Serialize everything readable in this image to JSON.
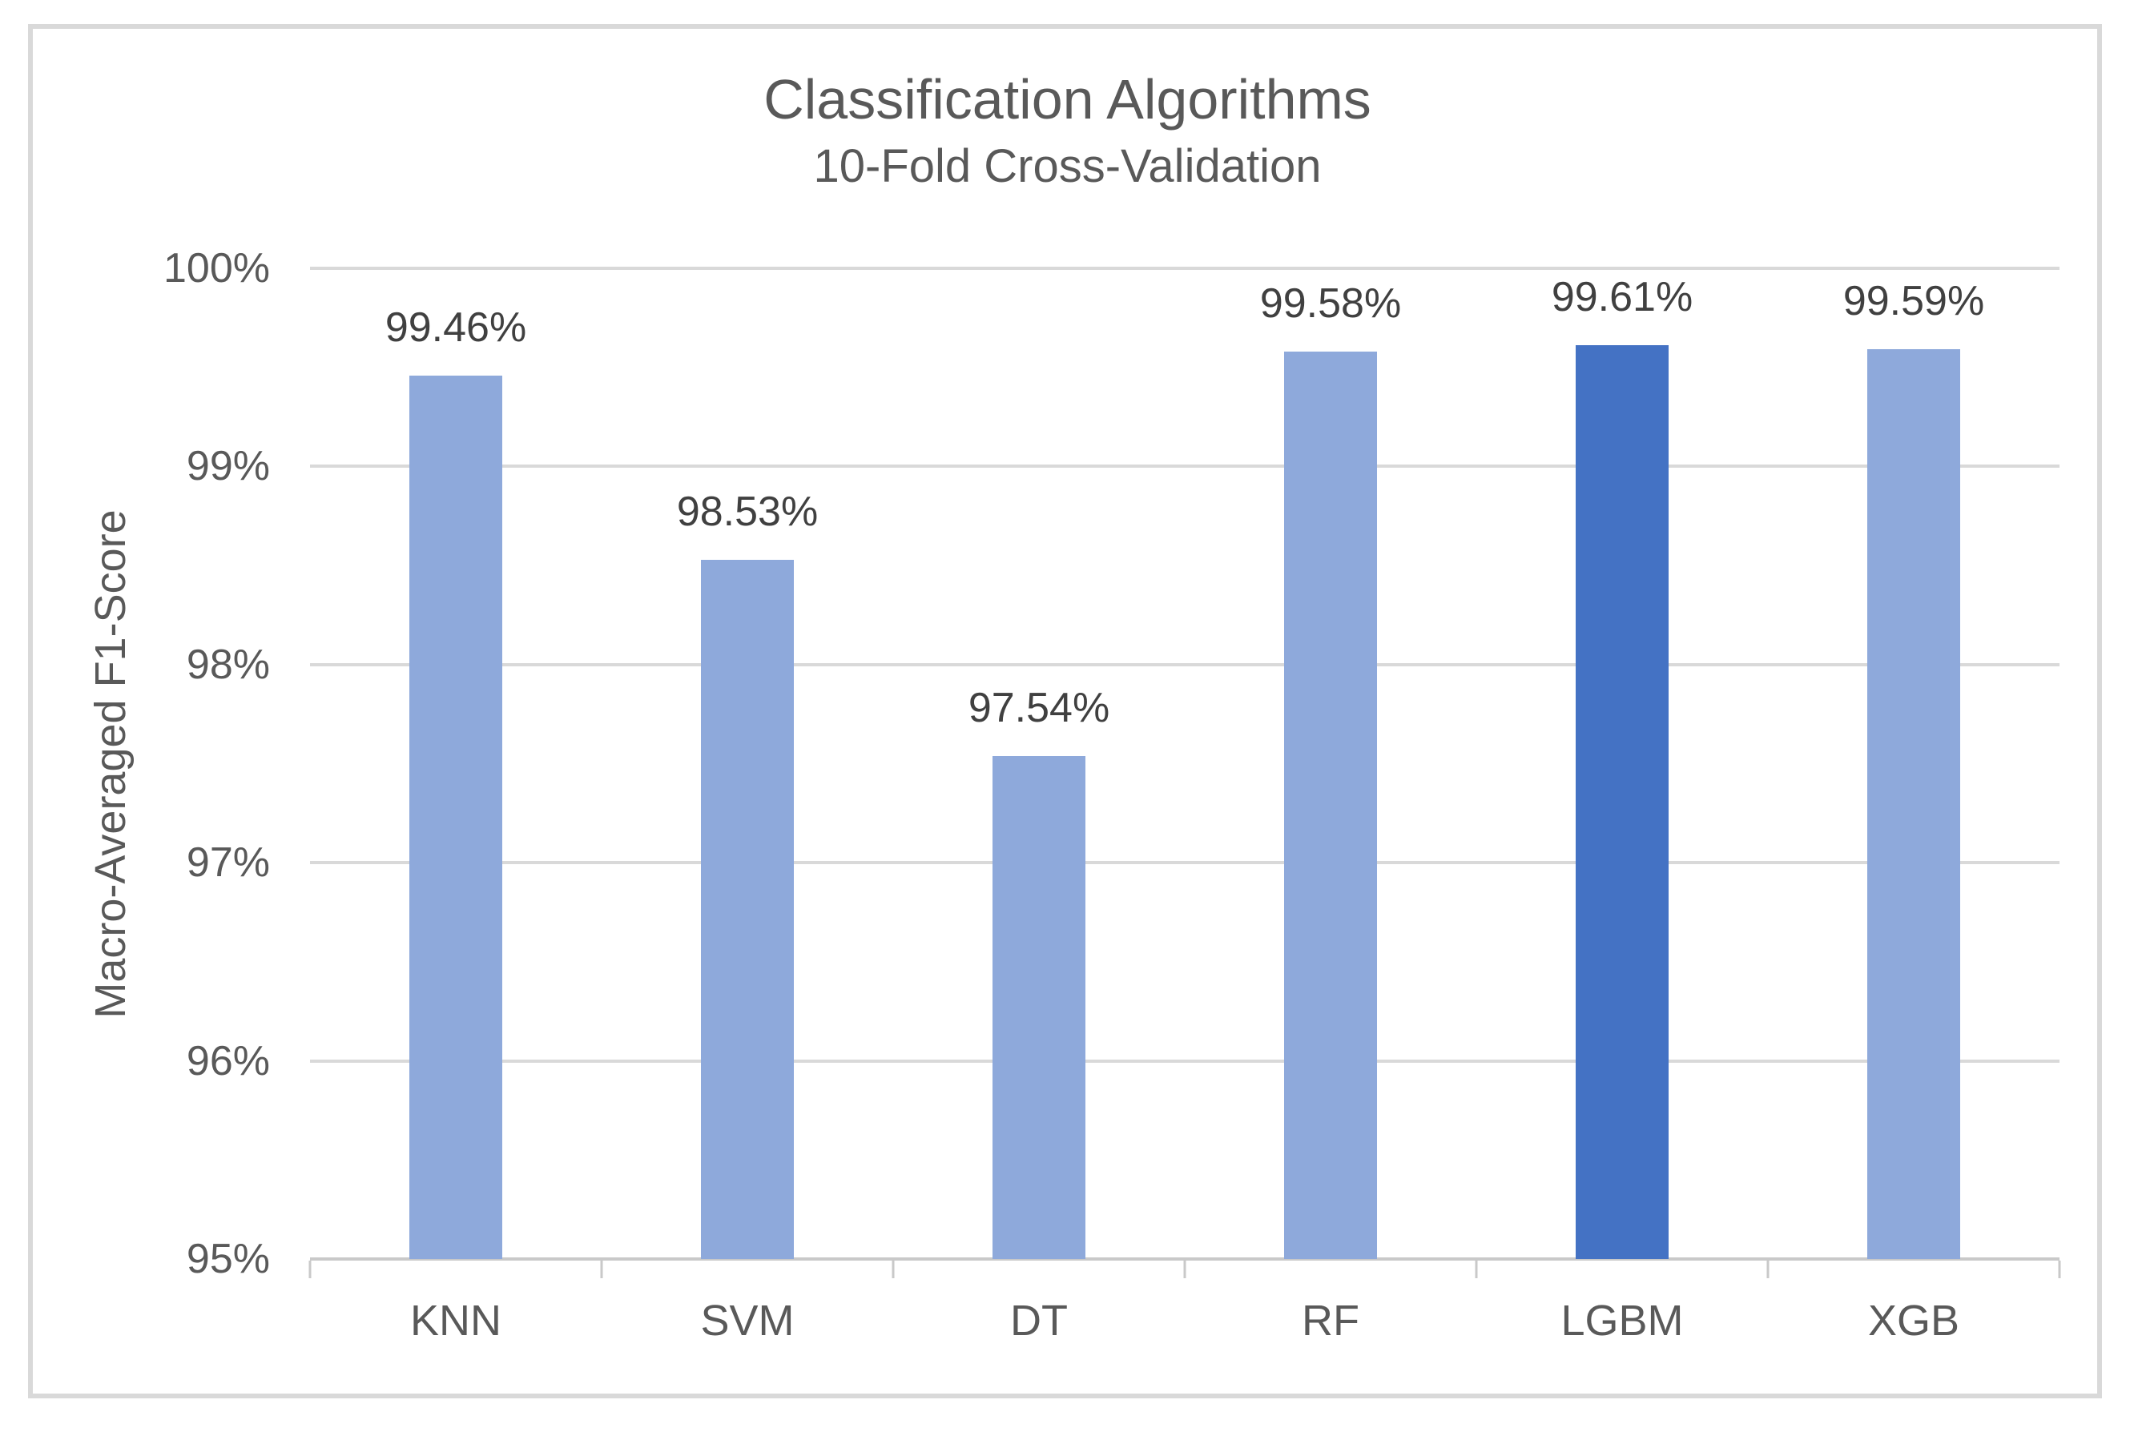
{
  "chart_data": {
    "type": "bar",
    "title": "Classification Algorithms",
    "subtitle": "10-Fold Cross-Validation",
    "ylabel": "Macro-Averaged F1-Score",
    "xlabel": "",
    "categories": [
      "KNN",
      "SVM",
      "DT",
      "RF",
      "LGBM",
      "XGB"
    ],
    "values": [
      99.46,
      98.53,
      97.54,
      99.58,
      99.61,
      99.59
    ],
    "value_labels": [
      "99.46%",
      "98.53%",
      "97.54%",
      "99.58%",
      "99.61%",
      "99.59%"
    ],
    "ylim": [
      95,
      100
    ],
    "yticks": [
      {
        "value": 100,
        "label": "100%"
      },
      {
        "value": 99,
        "label": "99%"
      },
      {
        "value": 98,
        "label": "98%"
      },
      {
        "value": 97,
        "label": "97%"
      },
      {
        "value": 96,
        "label": "96%"
      },
      {
        "value": 95,
        "label": "95%"
      }
    ],
    "grid": "horizontal",
    "legend": "none",
    "highlight_index": 4,
    "colors": {
      "bar": "#8EA9DB",
      "highlight_bar": "#4472C4",
      "gridline": "#D9D9D9",
      "axis_line": "#C9C9C9",
      "frame_border": "#D9D9D9",
      "title_text": "#595959",
      "tick_text": "#595959",
      "data_label_text": "#404040"
    }
  }
}
